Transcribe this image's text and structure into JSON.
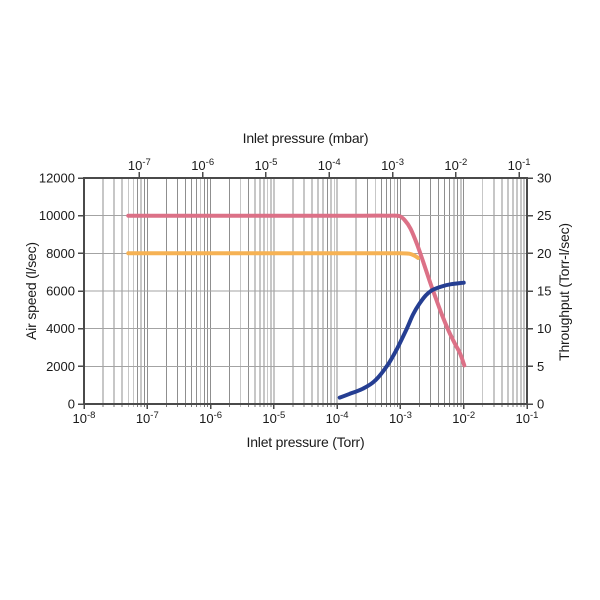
{
  "page": {
    "background": "#ffffff"
  },
  "chart_data": {
    "type": "line",
    "title": "",
    "x_axis_top": {
      "label": "Inlet pressure (mbar)",
      "scale": "log10",
      "tick_base": "10",
      "tick_exponents": [
        -7,
        -6,
        -5,
        -4,
        -3,
        -2,
        -1
      ],
      "log10_shift_vs_bottom_axis": -0.1249
    },
    "x_axis_bottom": {
      "label": "Inlet pressure (Torr)",
      "scale": "log10",
      "range_log10": [
        -8,
        -1
      ],
      "tick_base": "10",
      "tick_exponents": [
        -8,
        -7,
        -6,
        -5,
        -4,
        -3,
        -2,
        -1
      ]
    },
    "y_axis_left": {
      "label": "Air speed (l/sec)",
      "range": [
        0,
        12000
      ],
      "ticks": [
        0,
        2000,
        4000,
        6000,
        8000,
        10000,
        12000
      ]
    },
    "y_axis_right": {
      "label": "Throughput (Torr-l/sec)",
      "range": [
        0,
        30
      ],
      "ticks": [
        0,
        5,
        10,
        15,
        20,
        25,
        30
      ]
    },
    "grid": {
      "vertical": "log-decades-with-minor-lines",
      "horizontal_interval_left_axis": 2000,
      "grid_color": "#8f8f8f",
      "hgrid_color": "#a3a3a3",
      "frame_color": "#4a4a4a"
    },
    "series": [
      {
        "name": "air-speed-lower-curve",
        "color": "#f6b254",
        "axis": "left",
        "points_log10x_y": [
          [
            -7.3,
            8000
          ],
          [
            -6.5,
            8000
          ],
          [
            -5.5,
            8000
          ],
          [
            -4.5,
            8000
          ],
          [
            -3.5,
            8000
          ],
          [
            -3.0,
            8000
          ],
          [
            -2.86,
            7980
          ],
          [
            -2.78,
            7880
          ],
          [
            -2.72,
            7760
          ]
        ]
      },
      {
        "name": "air-speed-upper-curve",
        "color": "#dc7187",
        "axis": "left",
        "points_log10x_y": [
          [
            -7.3,
            10000
          ],
          [
            -6.5,
            10000
          ],
          [
            -5.5,
            10000
          ],
          [
            -4.5,
            10000
          ],
          [
            -3.6,
            10000
          ],
          [
            -3.2,
            10000
          ],
          [
            -3.02,
            9980
          ],
          [
            -2.93,
            9750
          ],
          [
            -2.84,
            9300
          ],
          [
            -2.74,
            8500
          ],
          [
            -2.64,
            7550
          ],
          [
            -2.54,
            6550
          ],
          [
            -2.44,
            5600
          ],
          [
            -2.34,
            4700
          ],
          [
            -2.24,
            3900
          ],
          [
            -2.14,
            3200
          ],
          [
            -2.06,
            2700
          ],
          [
            -1.99,
            2050
          ]
        ]
      },
      {
        "name": "throughput-curve",
        "color": "#253e92",
        "axis": "right",
        "points_log10x_y": [
          [
            -3.96,
            0.85
          ],
          [
            -3.8,
            1.35
          ],
          [
            -3.6,
            2.0
          ],
          [
            -3.4,
            3.1
          ],
          [
            -3.2,
            5.2
          ],
          [
            -3.05,
            7.4
          ],
          [
            -2.9,
            10.0
          ],
          [
            -2.8,
            11.9
          ],
          [
            -2.7,
            13.3
          ],
          [
            -2.6,
            14.4
          ],
          [
            -2.5,
            15.1
          ],
          [
            -2.35,
            15.6
          ],
          [
            -2.2,
            15.9
          ],
          [
            -2.0,
            16.1
          ]
        ]
      }
    ]
  }
}
